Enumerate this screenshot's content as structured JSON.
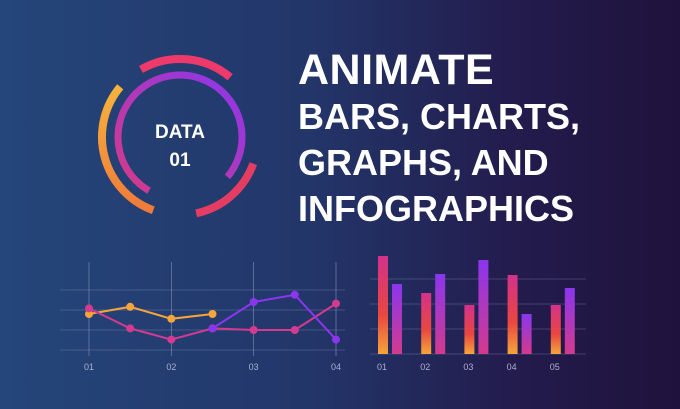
{
  "colors": {
    "orange": "#f5a53a",
    "magenta": "#d43a8f",
    "purple": "#8b36ee",
    "pink": "#f2365f",
    "grid": "#9aa3c4",
    "text": "#ffffff"
  },
  "headline": {
    "line1": "ANIMATE",
    "line2": "BARS, CHARTS,",
    "line3": "GRAPHS, AND",
    "line4": "INFOGRAPHICS"
  },
  "chart_data": [
    {
      "type": "pie",
      "title": "DATA\n01",
      "title_line1": "DATA",
      "title_line2": "01",
      "segments": [
        {
          "name": "outer-ring-left",
          "start_deg": 200,
          "end_deg": 310,
          "color": "#f5a53a"
        },
        {
          "name": "outer-ring-top",
          "start_deg": 330,
          "end_deg": 400,
          "color": "#ee3a6a"
        },
        {
          "name": "outer-ring-bottom",
          "start_deg": 110,
          "end_deg": 168,
          "color": "#e43c62"
        },
        {
          "name": "inner-ring",
          "start_deg": 210,
          "end_deg": 490,
          "color": "#9a3ae8"
        }
      ]
    },
    {
      "type": "line",
      "categories": [
        "01",
        "02",
        "03",
        "04"
      ],
      "x": [
        0,
        0.5,
        1,
        1.5,
        2,
        2.5,
        3
      ],
      "ylim": [
        0,
        10
      ],
      "grid": true,
      "series": [
        {
          "color": "#f5a53a",
          "values": [
            4.5,
            5.4,
            3.9,
            4.5
          ]
        },
        {
          "color": "#d43a8f",
          "values": [
            5.2,
            2.7,
            1.3,
            2.7,
            2.5,
            2.5,
            5.8
          ]
        },
        {
          "color": "#8b36ee",
          "values": [
            null,
            null,
            null,
            2.7,
            6.0,
            6.9,
            1.3
          ]
        }
      ]
    },
    {
      "type": "bar",
      "categories": [
        "01",
        "02",
        "03",
        "04",
        "05"
      ],
      "ylim": [
        0,
        10
      ],
      "grid": true,
      "groups": [
        {
          "label": "01",
          "values": [
            9.8,
            7.0
          ]
        },
        {
          "label": "02",
          "values": [
            6.1,
            8.0
          ]
        },
        {
          "label": "03",
          "values": [
            4.9,
            9.4
          ]
        },
        {
          "label": "04",
          "values": [
            7.9,
            4.0
          ]
        },
        {
          "label": "05",
          "values": [
            4.9,
            6.6
          ]
        }
      ]
    }
  ]
}
